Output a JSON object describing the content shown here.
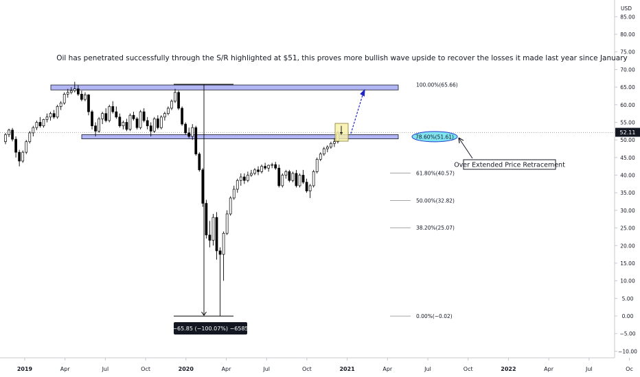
{
  "chart_data": {
    "type": "candlestick",
    "currency": "USD",
    "last_price": "52.11",
    "annotation_text": "Oil has penetrated successfully through the S/R highlighted at $51, this proves more bullish wave upside to recover the losses it made last year since January",
    "callout_text": "Over Extended Price Retracement",
    "measure_label": "−65.85 (−100.07%) −6585",
    "y_ticks": [
      85,
      80,
      75,
      70,
      65,
      60,
      55,
      50,
      45,
      40,
      35,
      30,
      25,
      20,
      15,
      10,
      5,
      0,
      -5,
      -10
    ],
    "y_tick_labels": [
      "85.00",
      "80.00",
      "75.00",
      "70.00",
      "65.00",
      "60.00",
      "55.00",
      "50.00",
      "45.00",
      "40.00",
      "35.00",
      "30.00",
      "25.00",
      "20.00",
      "15.00",
      "10.00",
      "5.00",
      "0.00",
      "−5.00",
      "−10.00"
    ],
    "x_labels": [
      {
        "label": "2019",
        "bold": true
      },
      {
        "label": "Apr",
        "bold": false
      },
      {
        "label": "Jul",
        "bold": false
      },
      {
        "label": "Oct",
        "bold": false
      },
      {
        "label": "2020",
        "bold": true
      },
      {
        "label": "Apr",
        "bold": false
      },
      {
        "label": "Jul",
        "bold": false
      },
      {
        "label": "Oct",
        "bold": false
      },
      {
        "label": "2021",
        "bold": true
      },
      {
        "label": "Apr",
        "bold": false
      },
      {
        "label": "Jul",
        "bold": false
      },
      {
        "label": "Oct",
        "bold": false
      },
      {
        "label": "2022",
        "bold": true
      },
      {
        "label": "Apr",
        "bold": false
      },
      {
        "label": "Jul",
        "bold": false
      },
      {
        "label": "Oc",
        "bold": false
      }
    ],
    "fib_levels": [
      {
        "label": "100.00%(65.66)",
        "value": 65.66
      },
      {
        "label": "78.60%(51.61)",
        "value": 51.61
      },
      {
        "label": "61.80%(40.57)",
        "value": 40.57
      },
      {
        "label": "50.00%(32.82)",
        "value": 32.82
      },
      {
        "label": "38.20%(25.07)",
        "value": 25.07
      },
      {
        "label": "0.00%(−0.02)",
        "value": -0.02
      }
    ],
    "zones": [
      {
        "name": "resistance",
        "low": 64.2,
        "high": 65.6
      },
      {
        "name": "support-resistance",
        "low": 50.3,
        "high": 51.5
      }
    ],
    "colors": {
      "up": "#ffffff",
      "down": "#000000",
      "zone": "#b3b6f5",
      "arrow": "#1e24c8",
      "callout": "#7fe3f0",
      "box": "#f6f0a8",
      "price_line": "#999999"
    },
    "candles_ohlc": [
      [
        49.5,
        52.0,
        48.8,
        51.5
      ],
      [
        51.5,
        53.2,
        50.8,
        52.8
      ],
      [
        52.8,
        53.4,
        49.6,
        50.2
      ],
      [
        50.2,
        51.0,
        45.0,
        46.5
      ],
      [
        46.5,
        47.2,
        42.5,
        44.0
      ],
      [
        44.0,
        47.0,
        43.5,
        46.5
      ],
      [
        46.5,
        50.0,
        46.0,
        49.5
      ],
      [
        49.5,
        52.5,
        49.0,
        52.0
      ],
      [
        52.0,
        54.0,
        51.0,
        53.5
      ],
      [
        53.5,
        55.5,
        52.8,
        55.0
      ],
      [
        55.0,
        56.5,
        53.5,
        54.0
      ],
      [
        54.0,
        56.0,
        53.5,
        55.8
      ],
      [
        55.8,
        57.5,
        55.0,
        56.5
      ],
      [
        56.5,
        58.0,
        55.5,
        57.5
      ],
      [
        57.5,
        58.5,
        56.0,
        56.5
      ],
      [
        56.5,
        60.0,
        56.0,
        59.5
      ],
      [
        59.5,
        61.0,
        58.5,
        60.5
      ],
      [
        60.5,
        63.5,
        60.0,
        63.0
      ],
      [
        63.0,
        64.5,
        62.0,
        63.5
      ],
      [
        63.5,
        65.0,
        63.0,
        64.0
      ],
      [
        64.0,
        66.5,
        63.5,
        64.5
      ],
      [
        64.5,
        65.5,
        62.5,
        63.0
      ],
      [
        63.0,
        64.0,
        61.0,
        61.5
      ],
      [
        61.5,
        63.5,
        61.0,
        62.8
      ],
      [
        62.8,
        63.0,
        57.0,
        58.0
      ],
      [
        58.0,
        58.5,
        53.0,
        54.0
      ],
      [
        54.0,
        55.0,
        51.0,
        52.5
      ],
      [
        52.5,
        56.5,
        52.0,
        56.0
      ],
      [
        56.0,
        58.0,
        54.5,
        57.5
      ],
      [
        57.5,
        59.0,
        55.0,
        55.5
      ],
      [
        55.5,
        60.0,
        55.0,
        59.5
      ],
      [
        59.5,
        61.0,
        57.5,
        58.0
      ],
      [
        58.0,
        59.5,
        56.0,
        56.5
      ],
      [
        56.5,
        57.5,
        53.5,
        54.0
      ],
      [
        54.0,
        55.5,
        53.0,
        55.0
      ],
      [
        55.0,
        56.0,
        52.5,
        53.0
      ],
      [
        53.0,
        57.5,
        52.5,
        57.0
      ],
      [
        57.0,
        58.0,
        55.5,
        56.0
      ],
      [
        56.0,
        56.5,
        53.0,
        53.5
      ],
      [
        53.5,
        58.5,
        53.0,
        58.0
      ],
      [
        58.0,
        59.0,
        55.0,
        55.5
      ],
      [
        55.5,
        56.5,
        53.0,
        54.0
      ],
      [
        54.0,
        55.0,
        51.0,
        52.5
      ],
      [
        52.5,
        56.5,
        52.0,
        56.0
      ],
      [
        56.0,
        57.0,
        53.0,
        53.5
      ],
      [
        53.5,
        57.0,
        53.0,
        56.5
      ],
      [
        56.5,
        58.0,
        55.5,
        57.5
      ],
      [
        57.5,
        59.5,
        57.0,
        59.0
      ],
      [
        59.0,
        61.5,
        58.5,
        61.0
      ],
      [
        61.0,
        64.5,
        60.5,
        63.5
      ],
      [
        63.5,
        64.0,
        58.5,
        59.0
      ],
      [
        59.0,
        59.5,
        54.0,
        54.5
      ],
      [
        54.5,
        55.0,
        51.5,
        52.0
      ],
      [
        52.0,
        53.5,
        50.5,
        51.0
      ],
      [
        51.0,
        54.5,
        50.0,
        53.5
      ],
      [
        53.5,
        54.0,
        45.5,
        46.0
      ],
      [
        46.0,
        46.5,
        41.0,
        41.5
      ],
      [
        41.5,
        42.0,
        31.0,
        32.0
      ],
      [
        32.0,
        33.0,
        22.0,
        23.0
      ],
      [
        23.0,
        27.0,
        19.5,
        21.5
      ],
      [
        21.5,
        29.0,
        20.0,
        28.0
      ],
      [
        28.0,
        29.5,
        16.0,
        18.5
      ],
      [
        18.5,
        19.5,
        -0.02,
        17.5
      ],
      [
        17.5,
        24.0,
        10.0,
        23.5
      ],
      [
        23.5,
        30.0,
        23.0,
        29.0
      ],
      [
        29.0,
        34.0,
        28.5,
        33.5
      ],
      [
        33.5,
        37.0,
        33.0,
        36.0
      ],
      [
        36.0,
        39.0,
        35.0,
        38.5
      ],
      [
        38.5,
        40.5,
        37.0,
        39.5
      ],
      [
        39.5,
        40.5,
        37.5,
        38.5
      ],
      [
        38.5,
        41.0,
        38.0,
        40.0
      ],
      [
        40.0,
        41.5,
        39.5,
        40.5
      ],
      [
        40.5,
        42.0,
        40.0,
        41.5
      ],
      [
        41.5,
        42.5,
        40.0,
        41.0
      ],
      [
        41.0,
        43.0,
        40.5,
        42.5
      ],
      [
        42.5,
        43.5,
        41.5,
        42.0
      ],
      [
        42.0,
        43.0,
        41.0,
        42.8
      ],
      [
        42.8,
        43.5,
        42.0,
        43.0
      ],
      [
        43.0,
        43.8,
        41.5,
        42.0
      ],
      [
        42.0,
        43.0,
        36.5,
        37.0
      ],
      [
        37.0,
        40.5,
        36.5,
        40.0
      ],
      [
        40.0,
        41.5,
        39.0,
        41.0
      ],
      [
        41.0,
        41.5,
        38.0,
        38.5
      ],
      [
        38.5,
        41.0,
        38.0,
        40.5
      ],
      [
        40.5,
        41.5,
        36.5,
        37.0
      ],
      [
        37.0,
        40.5,
        36.5,
        40.0
      ],
      [
        40.0,
        41.5,
        37.5,
        38.0
      ],
      [
        38.0,
        39.0,
        35.0,
        35.5
      ],
      [
        35.5,
        37.5,
        33.5,
        37.0
      ],
      [
        37.0,
        41.5,
        36.5,
        41.0
      ],
      [
        41.0,
        45.0,
        40.5,
        44.5
      ],
      [
        44.5,
        46.5,
        44.0,
        46.0
      ],
      [
        46.0,
        48.0,
        45.5,
        47.5
      ],
      [
        47.5,
        48.5,
        46.5,
        48.0
      ],
      [
        48.0,
        49.5,
        47.5,
        49.0
      ],
      [
        49.0,
        50.5,
        48.0,
        49.5
      ],
      [
        49.5,
        52.5,
        49.0,
        52.0
      ],
      [
        52.0,
        54.0,
        51.5,
        52.11
      ]
    ]
  }
}
